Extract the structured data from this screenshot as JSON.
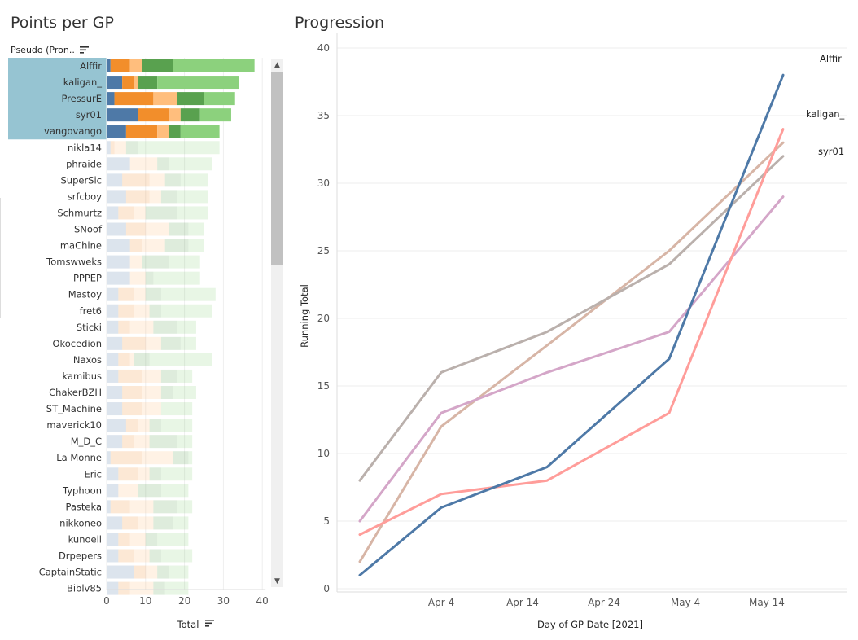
{
  "titles": {
    "left": "Points per GP",
    "right": "Progression"
  },
  "left_panel": {
    "row_header": "Pseudo (Pron..",
    "sort_icon": "sort-icon",
    "xlabel": "Total",
    "highlight_color": "#96c4d2"
  },
  "colors": {
    "seg1": "#4e79a7",
    "seg2": "#f28e2b",
    "seg3": "#ffbe7d",
    "seg4": "#59a14f",
    "seg5": "#8cd17d"
  },
  "chart_data": [
    {
      "type": "bar",
      "orientation": "horizontal",
      "stacked": true,
      "title": "Points per GP",
      "xlabel": "Total",
      "ylabel": "Pseudo (Pron..",
      "xlim": [
        0,
        40
      ],
      "xticks": [
        0,
        10,
        20,
        30,
        40
      ],
      "highlighted": [
        "Alffir",
        "kaligan_",
        "PressurE",
        "syr01",
        "vangovango"
      ],
      "categories": [
        "Alffir",
        "kaligan_",
        "PressurE",
        "syr01",
        "vangovango",
        "nikla14",
        "phraide",
        "SuperSic",
        "srfcboy",
        "Schmurtz",
        "SNoof",
        "maChine",
        "Tomswweks",
        "PPPEP",
        "Mastoy",
        "fret6",
        "Sticki",
        "Okocedion",
        "Naxos",
        "kamibus",
        "ChakerBZH",
        "ST_Machine",
        "maverick10",
        "M_D_C",
        "La Monne",
        "Eric",
        "Typhoon",
        "Pasteka",
        "nikkoneo",
        "kunoeil",
        "Drpepers",
        "CaptainStatic",
        "Biblv85"
      ],
      "series": [
        {
          "values": [
            1,
            4,
            2,
            8,
            5,
            1,
            6,
            4,
            5,
            3,
            5,
            6,
            6,
            6,
            3,
            3,
            3,
            4,
            3,
            3,
            4,
            4,
            5,
            4,
            1,
            3,
            3,
            1,
            4,
            3,
            3,
            7,
            3
          ]
        },
        {
          "values": [
            5,
            3,
            10,
            8,
            8,
            1,
            0,
            7,
            6,
            4,
            5,
            3,
            0,
            0,
            4,
            4,
            3,
            6,
            3,
            6,
            5,
            5,
            3,
            3,
            8,
            5,
            0,
            5,
            4,
            3,
            4,
            3,
            3
          ]
        },
        {
          "values": [
            3,
            1,
            6,
            3,
            3,
            3,
            7,
            4,
            3,
            3,
            6,
            6,
            3,
            4,
            3,
            4,
            6,
            4,
            1,
            5,
            5,
            5,
            3,
            4,
            8,
            3,
            5,
            6,
            4,
            4,
            4,
            3,
            6
          ]
        },
        {
          "values": [
            8,
            5,
            7,
            5,
            3,
            3,
            3,
            4,
            4,
            8,
            5,
            6,
            7,
            2,
            4,
            3,
            6,
            5,
            4,
            4,
            3,
            0,
            3,
            7,
            4,
            3,
            6,
            6,
            5,
            3,
            3,
            3,
            3
          ]
        },
        {
          "values": [
            21,
            21,
            8,
            8,
            10,
            21,
            11,
            7,
            8,
            8,
            4,
            4,
            8,
            12,
            14,
            13,
            5,
            4,
            16,
            4,
            6,
            8,
            8,
            4,
            1,
            8,
            7,
            4,
            4,
            8,
            8,
            5,
            6
          ]
        }
      ]
    },
    {
      "type": "line",
      "title": "Progression",
      "xlabel": "Day of GP Date [2021]",
      "ylabel": "Running Total",
      "ylim": [
        0,
        40
      ],
      "yticks": [
        0,
        5,
        10,
        15,
        20,
        25,
        30,
        35,
        40
      ],
      "xticks": [
        "Apr 4",
        "Apr 14",
        "Apr 24",
        "May 4",
        "May 14"
      ],
      "series": [
        {
          "name": "Alffir",
          "color": "#4e79a7",
          "x": [
            "2021-03-25",
            "2021-04-04",
            "2021-04-17",
            "2021-05-02",
            "2021-05-16"
          ],
          "y": [
            1,
            6,
            9,
            17,
            38
          ]
        },
        {
          "name": "kaligan_",
          "color": "#ff9d9a",
          "x": [
            "2021-03-25",
            "2021-04-04",
            "2021-04-17",
            "2021-05-02",
            "2021-05-16"
          ],
          "y": [
            4,
            7,
            8,
            13,
            34
          ]
        },
        {
          "name": "syr01",
          "color": "#bab0ac",
          "x": [
            "2021-03-25",
            "2021-04-04",
            "2021-04-17",
            "2021-05-02",
            "2021-05-16"
          ],
          "y": [
            8,
            16,
            19,
            24,
            32
          ]
        },
        {
          "color": "#d7b5a6",
          "x": [
            "2021-03-25",
            "2021-04-04",
            "2021-04-17",
            "2021-05-02",
            "2021-05-16"
          ],
          "y": [
            2,
            12,
            18,
            25,
            33
          ]
        },
        {
          "color": "#d4a6c8",
          "x": [
            "2021-03-25",
            "2021-04-04",
            "2021-04-17",
            "2021-05-02",
            "2021-05-16"
          ],
          "y": [
            5,
            13,
            16,
            19,
            29
          ]
        }
      ]
    }
  ]
}
